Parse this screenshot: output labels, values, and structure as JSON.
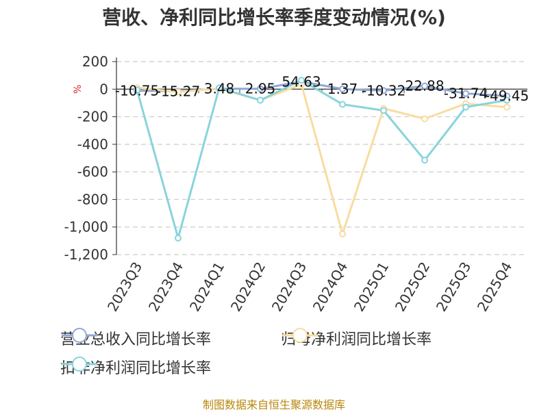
{
  "title": "营收、净利同比增长率季度变动情况(%)",
  "source": "制图数据来自恒生聚源数据库",
  "y_axis_unit": "%",
  "chart_data": {
    "type": "line",
    "title": "营收、净利同比增长率季度变动情况(%)",
    "xlabel": "",
    "ylabel": "%",
    "categories": [
      "2023Q3",
      "2023Q4",
      "2024Q1",
      "2024Q2",
      "2024Q3",
      "2024Q4",
      "2025Q1",
      "2025Q2",
      "2025Q3",
      "2025Q4"
    ],
    "y_ticks": [
      "200",
      "0",
      "-200",
      "-400",
      "-600",
      "-800",
      "-1,000",
      "-1,200"
    ],
    "ylim": [
      -1200,
      200
    ],
    "grid": true,
    "legend_position": "bottom",
    "series": [
      {
        "name": "营业总收入同比增长率",
        "color": "#8fa8d4",
        "values": [
          -10.75,
          -15.27,
          3.48,
          2.95,
          54.63,
          1.37,
          -10.32,
          22.88,
          -31.74,
          -49.45
        ],
        "labels": [
          "-10.75",
          "-15.27",
          "3.48",
          "2.95",
          "54.63",
          "1.37",
          "-10.32",
          "22.88",
          "-31.74",
          "-49.45"
        ]
      },
      {
        "name": "归母净利润同比增长率",
        "color": "#f8dc9e",
        "values": [
          10,
          -20,
          5,
          -80,
          35,
          -1050,
          -140,
          -215,
          -105,
          -130
        ]
      },
      {
        "name": "扣非净利润同比增长率",
        "color": "#87d4dc",
        "values": [
          -5,
          -1080,
          10,
          -80,
          65,
          -110,
          -155,
          -515,
          -130,
          -80
        ]
      }
    ]
  }
}
